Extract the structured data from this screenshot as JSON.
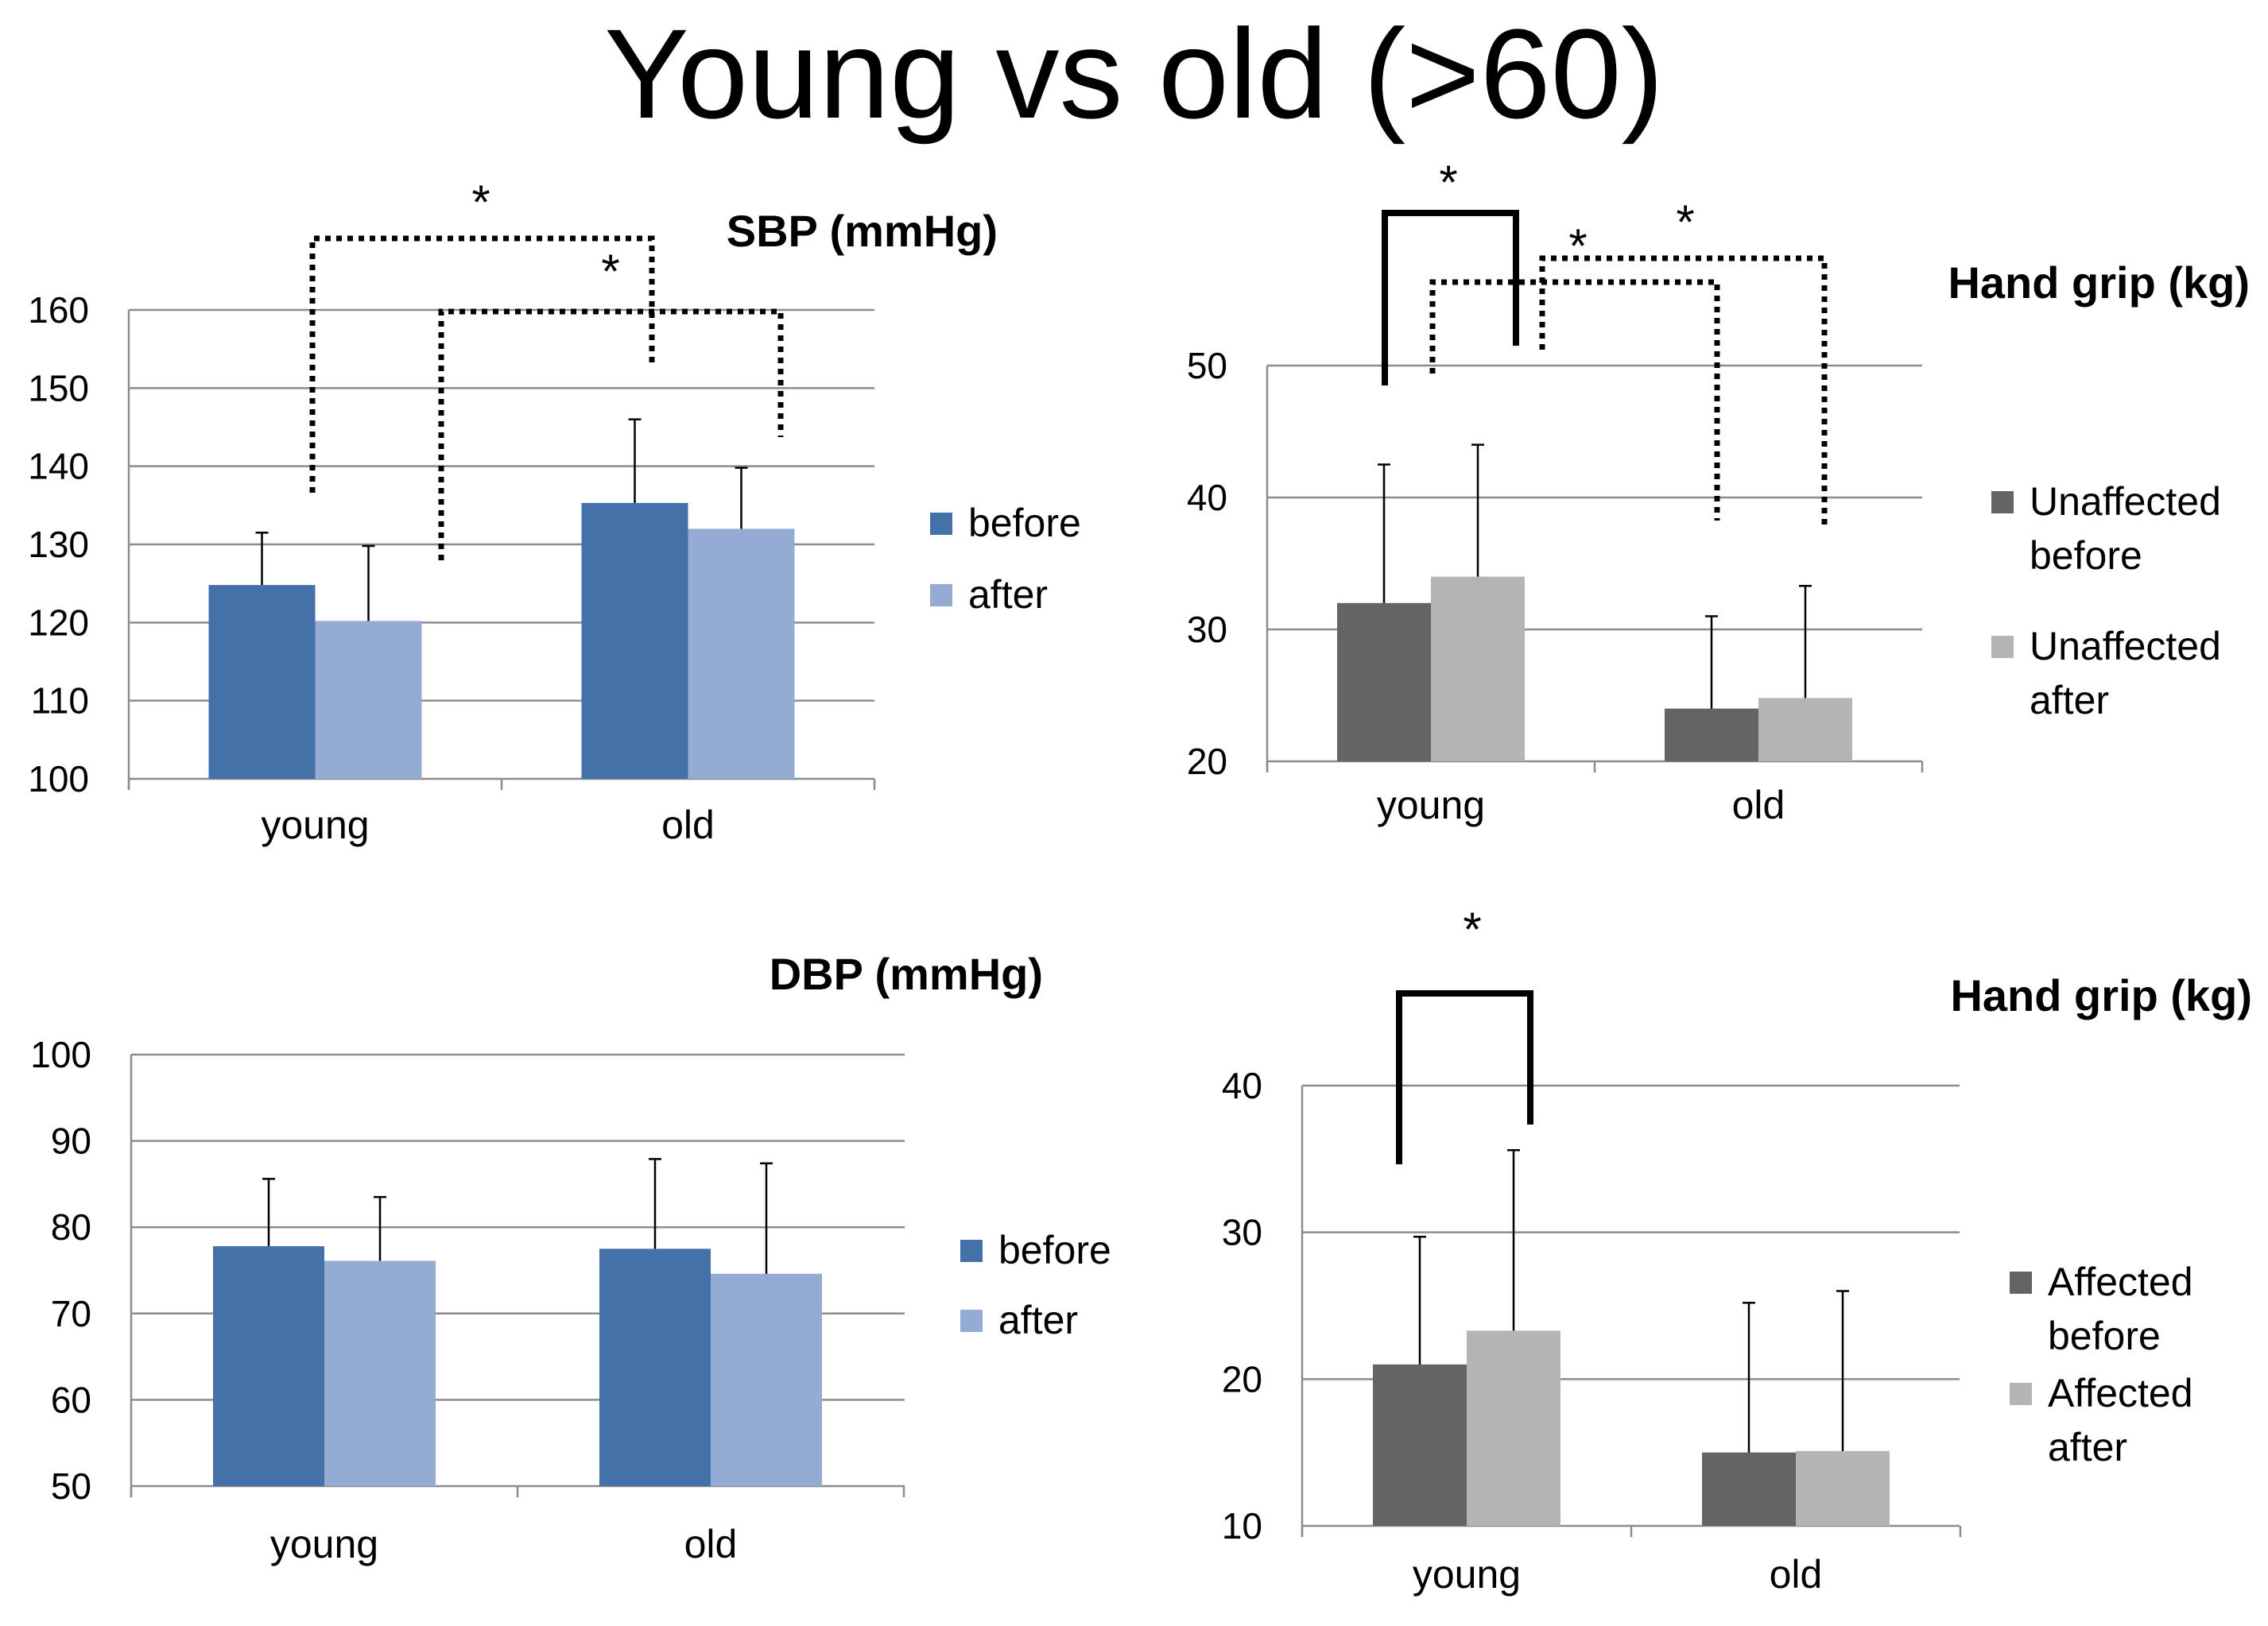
{
  "title": "Young vs old (>60)",
  "chart_data": [
    {
      "type": "bar",
      "title": "SBP (mmHg)",
      "categories": [
        "young",
        "old"
      ],
      "series": [
        {
          "name": "before",
          "values": [
            124.8,
            135.3
          ],
          "errors": [
            6.7,
            10.7
          ]
        },
        {
          "name": "after",
          "values": [
            120.2,
            132.0
          ],
          "errors": [
            9.6,
            7.8
          ]
        }
      ],
      "ylim": [
        100,
        160
      ],
      "yticks": [
        100,
        110,
        120,
        130,
        140,
        150,
        160
      ],
      "legend": "right",
      "colors": [
        "#4472a8",
        "#94acd4"
      ],
      "significance": [
        {
          "label": "*",
          "from": [
            0,
            0
          ],
          "to": [
            1,
            0
          ],
          "style": "dotted"
        },
        {
          "label": "*",
          "from": [
            0,
            1
          ],
          "to": [
            1,
            1
          ],
          "style": "dotted"
        }
      ]
    },
    {
      "type": "bar",
      "title": "Hand grip (kg)",
      "categories": [
        "young",
        "old"
      ],
      "series": [
        {
          "name": "Unaffected before",
          "values": [
            32.0,
            24.0
          ],
          "errors": [
            10.5,
            7.0
          ]
        },
        {
          "name": "Unaffected after",
          "values": [
            34.0,
            24.8
          ],
          "errors": [
            10.0,
            8.5
          ]
        }
      ],
      "ylim": [
        20,
        50
      ],
      "yticks": [
        20,
        30,
        40,
        50
      ],
      "legend": "right",
      "colors": [
        "#646464",
        "#b4b4b4"
      ],
      "significance": [
        {
          "label": "*",
          "from": [
            0,
            0
          ],
          "to": [
            0,
            1
          ],
          "style": "solid"
        },
        {
          "label": "*",
          "from": [
            0,
            1
          ],
          "to": [
            1,
            0
          ],
          "style": "dotted"
        },
        {
          "label": "*",
          "from": [
            0,
            1
          ],
          "to": [
            1,
            1
          ],
          "style": "dotted"
        }
      ]
    },
    {
      "type": "bar",
      "title": "DBP (mmHg)",
      "categories": [
        "young",
        "old"
      ],
      "series": [
        {
          "name": "before",
          "values": [
            77.8,
            77.5
          ],
          "errors": [
            7.8,
            10.4
          ]
        },
        {
          "name": "after",
          "values": [
            76.1,
            74.6
          ],
          "errors": [
            7.4,
            12.8
          ]
        }
      ],
      "ylim": [
        50,
        100
      ],
      "yticks": [
        50,
        60,
        70,
        80,
        90,
        100
      ],
      "legend": "right",
      "colors": [
        "#4472a8",
        "#94acd4"
      ],
      "significance": []
    },
    {
      "type": "bar",
      "title": "Hand grip (kg)",
      "categories": [
        "young",
        "old"
      ],
      "series": [
        {
          "name": "Affected before",
          "values": [
            21.0,
            15.0
          ],
          "errors": [
            8.7,
            10.2
          ]
        },
        {
          "name": "Affected after",
          "values": [
            23.3,
            15.1
          ],
          "errors": [
            12.3,
            10.9
          ]
        }
      ],
      "ylim": [
        10,
        40
      ],
      "yticks": [
        10,
        20,
        30,
        40
      ],
      "legend": "right",
      "colors": [
        "#646464",
        "#b4b4b4"
      ],
      "significance": [
        {
          "label": "*",
          "from": [
            0,
            0
          ],
          "to": [
            0,
            1
          ],
          "style": "solid"
        }
      ]
    }
  ]
}
